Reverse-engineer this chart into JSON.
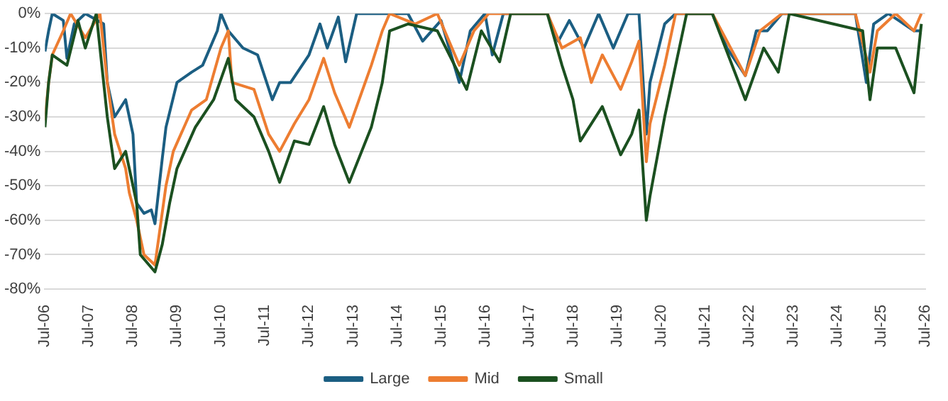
{
  "chart_data": {
    "type": "line",
    "marker": "none",
    "line_style": "solid",
    "grid": "y",
    "legend": "bottom",
    "xlim": [
      "2006-07",
      "2026-07"
    ],
    "xticks": [
      {
        "value": "2006-07",
        "label": "Jul-06"
      },
      {
        "value": "2007-07",
        "label": "Jul-07"
      },
      {
        "value": "2008-07",
        "label": "Jul-08"
      },
      {
        "value": "2009-07",
        "label": "Jul-09"
      },
      {
        "value": "2010-07",
        "label": "Jul-10"
      },
      {
        "value": "2011-07",
        "label": "Jul-11"
      },
      {
        "value": "2012-07",
        "label": "Jul-12"
      },
      {
        "value": "2013-07",
        "label": "Jul-13"
      },
      {
        "value": "2014-07",
        "label": "Jul-14"
      },
      {
        "value": "2015-07",
        "label": "Jul-15"
      },
      {
        "value": "2016-07",
        "label": "Jul-16"
      },
      {
        "value": "2017-07",
        "label": "Jul-17"
      },
      {
        "value": "2018-07",
        "label": "Jul-18"
      },
      {
        "value": "2019-07",
        "label": "Jul-19"
      },
      {
        "value": "2020-07",
        "label": "Jul-20"
      },
      {
        "value": "2021-07",
        "label": "Jul-21"
      },
      {
        "value": "2022-07",
        "label": "Jul-22"
      },
      {
        "value": "2023-07",
        "label": "Jul-23"
      },
      {
        "value": "2024-07",
        "label": "Jul-24"
      },
      {
        "value": "2025-07",
        "label": "Jul-25"
      },
      {
        "value": "2026-07",
        "label": "Jul-26"
      }
    ],
    "ylim": [
      -80,
      0
    ],
    "yticks": [
      {
        "value": -80,
        "label": "-80%"
      },
      {
        "value": -70,
        "label": "-70%"
      },
      {
        "value": -60,
        "label": "-60%"
      },
      {
        "value": -50,
        "label": "-50%"
      },
      {
        "value": -40,
        "label": "-40%"
      },
      {
        "value": -30,
        "label": "-30%"
      },
      {
        "value": -20,
        "label": "-20%"
      },
      {
        "value": -10,
        "label": "-10%"
      },
      {
        "value": 0,
        "label": "0%"
      }
    ],
    "series": [
      {
        "name": "Large",
        "color": "#1b5e82",
        "x": [
          "2006-07",
          "2006-08",
          "2006-09",
          "2006-12",
          "2007-01",
          "2007-03",
          "2007-06",
          "2007-11",
          "2007-12",
          "2008-02",
          "2008-05",
          "2008-07",
          "2008-08",
          "2008-10",
          "2008-12",
          "2009-01",
          "2009-03",
          "2009-04",
          "2009-07",
          "2009-11",
          "2010-02",
          "2010-06",
          "2010-07",
          "2010-09",
          "2011-01",
          "2011-05",
          "2011-09",
          "2011-11",
          "2012-02",
          "2012-07",
          "2012-10",
          "2012-12",
          "2013-03",
          "2013-05",
          "2013-08",
          "2014-01",
          "2014-10",
          "2015-02",
          "2015-07",
          "2015-12",
          "2016-03",
          "2016-07",
          "2016-09",
          "2016-12",
          "2017-12",
          "2018-03",
          "2018-06",
          "2018-10",
          "2019-02",
          "2019-06",
          "2019-10",
          "2020-01",
          "2020-03",
          "2020-04",
          "2020-08",
          "2020-11",
          "2021-09",
          "2022-01",
          "2022-06",
          "2022-09",
          "2022-12",
          "2023-04",
          "2024-12",
          "2025-03",
          "2025-05",
          "2025-09",
          "2026-04",
          "2026-06"
        ],
        "values": [
          -11,
          -5,
          0,
          -2,
          -13,
          -3,
          0,
          -3,
          -20,
          -30,
          -25,
          -35,
          -55,
          -58,
          -57,
          -61,
          -42,
          -33,
          -20,
          -17,
          -15,
          -5,
          0,
          -5,
          -10,
          -12,
          -25,
          -20,
          -20,
          -12,
          -3,
          -10,
          -1,
          -14,
          0,
          0,
          0,
          -8,
          -2,
          -20,
          -5,
          0,
          -12,
          0,
          0,
          -8,
          -2,
          -10,
          0,
          -10,
          0,
          0,
          -35,
          -20,
          -3,
          0,
          0,
          -10,
          -18,
          -5,
          -5,
          0,
          0,
          -20,
          -3,
          0,
          -5,
          -5
        ]
      },
      {
        "name": "Mid",
        "color": "#ed7d31",
        "x": [
          "2006-07",
          "2006-08",
          "2006-09",
          "2006-12",
          "2007-02",
          "2007-06",
          "2007-10",
          "2007-12",
          "2008-02",
          "2008-05",
          "2008-06",
          "2008-08",
          "2008-10",
          "2009-01",
          "2009-04",
          "2009-06",
          "2009-11",
          "2010-03",
          "2010-07",
          "2010-09",
          "2010-10",
          "2011-04",
          "2011-08",
          "2011-11",
          "2012-03",
          "2012-07",
          "2012-11",
          "2013-02",
          "2013-06",
          "2013-12",
          "2014-03",
          "2014-05",
          "2014-12",
          "2015-06",
          "2015-12",
          "2016-04",
          "2016-08",
          "2017-12",
          "2018-04",
          "2018-09",
          "2018-12",
          "2019-03",
          "2019-08",
          "2019-11",
          "2020-01",
          "2020-03",
          "2020-04",
          "2020-08",
          "2020-11",
          "2021-09",
          "2022-06",
          "2022-10",
          "2023-04",
          "2024-12",
          "2025-04",
          "2025-06",
          "2025-11",
          "2026-04",
          "2026-06"
        ],
        "values": [
          -31,
          -20,
          -12,
          -5,
          0,
          -7,
          0,
          -20,
          -35,
          -45,
          -52,
          -60,
          -70,
          -73,
          -50,
          -40,
          -28,
          -25,
          -10,
          -5,
          -20,
          -22,
          -35,
          -40,
          -32,
          -25,
          -13,
          -23,
          -33,
          -15,
          -5,
          0,
          -3,
          0,
          -15,
          -5,
          0,
          0,
          -10,
          -7,
          -20,
          -12,
          -22,
          -14,
          -8,
          -43,
          -32,
          -15,
          0,
          0,
          -18,
          -5,
          0,
          0,
          -17,
          -5,
          0,
          -5,
          0
        ]
      },
      {
        "name": "Small",
        "color": "#1b5020",
        "x": [
          "2006-07",
          "2006-08",
          "2006-09",
          "2007-01",
          "2007-04",
          "2007-06",
          "2007-09",
          "2007-12",
          "2008-02",
          "2008-05",
          "2008-08",
          "2008-09",
          "2009-01",
          "2009-03",
          "2009-05",
          "2009-07",
          "2009-12",
          "2010-05",
          "2010-09",
          "2010-11",
          "2011-04",
          "2011-08",
          "2011-11",
          "2012-03",
          "2012-07",
          "2012-11",
          "2013-02",
          "2013-06",
          "2013-12",
          "2014-03",
          "2014-05",
          "2014-10",
          "2015-06",
          "2016-02",
          "2016-06",
          "2016-11",
          "2017-02",
          "2017-12",
          "2018-04",
          "2018-07",
          "2018-09",
          "2019-03",
          "2019-08",
          "2019-11",
          "2020-01",
          "2020-03",
          "2020-04",
          "2020-08",
          "2020-11",
          "2021-02",
          "2021-09",
          "2022-06",
          "2022-11",
          "2023-03",
          "2023-06",
          "2025-02",
          "2025-04",
          "2025-06",
          "2025-11",
          "2026-04",
          "2026-06"
        ],
        "values": [
          -33,
          -20,
          -12,
          -15,
          -2,
          -10,
          0,
          -30,
          -45,
          -40,
          -55,
          -70,
          -75,
          -67,
          -55,
          -45,
          -33,
          -25,
          -13,
          -25,
          -30,
          -40,
          -49,
          -37,
          -38,
          -27,
          -38,
          -49,
          -33,
          -20,
          -5,
          -3,
          -5,
          -22,
          -5,
          -14,
          0,
          0,
          -15,
          -25,
          -37,
          -27,
          -41,
          -35,
          -28,
          -60,
          -53,
          -30,
          -15,
          0,
          0,
          -25,
          -10,
          -17,
          0,
          -5,
          -25,
          -10,
          -10,
          -23,
          -3
        ]
      }
    ]
  }
}
